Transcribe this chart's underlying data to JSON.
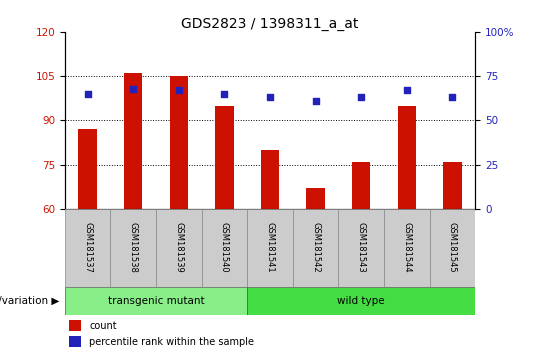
{
  "title": "GDS2823 / 1398311_a_at",
  "samples": [
    "GSM181537",
    "GSM181538",
    "GSM181539",
    "GSM181540",
    "GSM181541",
    "GSM181542",
    "GSM181543",
    "GSM181544",
    "GSM181545"
  ],
  "counts": [
    87,
    106,
    105,
    95,
    80,
    67,
    76,
    95,
    76
  ],
  "percentiles": [
    65,
    68,
    67,
    65,
    63,
    61,
    63,
    67,
    63
  ],
  "ylim_left": [
    60,
    120
  ],
  "ylim_right": [
    0,
    100
  ],
  "yticks_left": [
    60,
    75,
    90,
    105,
    120
  ],
  "yticks_right": [
    0,
    25,
    50,
    75,
    100
  ],
  "ytick_labels_right": [
    "0",
    "25",
    "50",
    "75",
    "100%"
  ],
  "hgrid_lines": [
    75,
    90,
    105
  ],
  "bar_color": "#cc1100",
  "scatter_color": "#2222bb",
  "bar_width": 0.4,
  "groups": [
    {
      "label": "transgenic mutant",
      "start": 0,
      "end": 4,
      "color": "#88ee88"
    },
    {
      "label": "wild type",
      "start": 4,
      "end": 9,
      "color": "#44dd44"
    }
  ],
  "group_label": "genotype/variation",
  "legend_count_label": "count",
  "legend_percentile_label": "percentile rank within the sample",
  "title_fontsize": 10,
  "tick_fontsize": 7.5,
  "sample_fontsize": 6,
  "group_fontsize": 7.5,
  "legend_fontsize": 7
}
